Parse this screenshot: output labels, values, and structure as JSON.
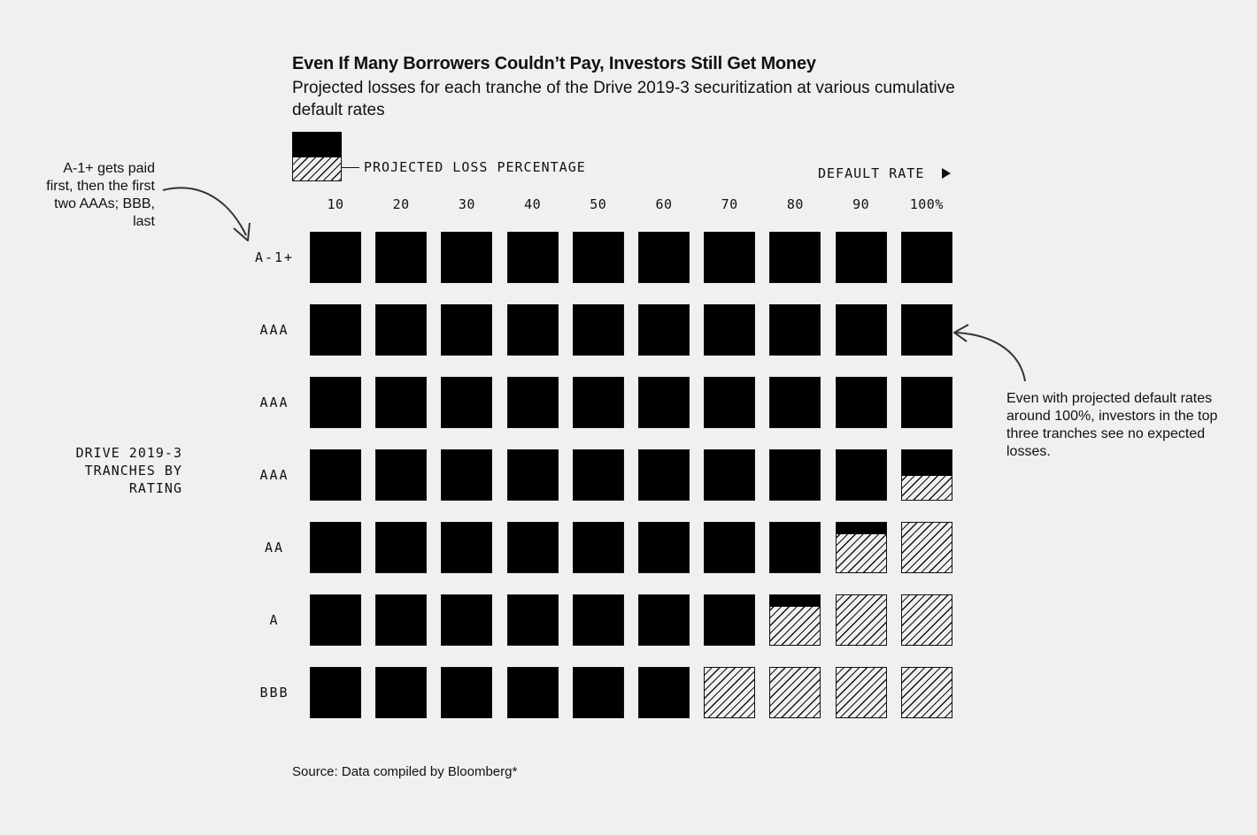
{
  "title": "Even If Many Borrowers Couldn’t Pay, Investors Still Get Money",
  "subtitle": "Projected losses for each tranche of the Drive 2019-3 securitization at various cumulative default rates",
  "legend": {
    "label": "PROJECTED LOSS PERCENTAGE"
  },
  "axis_title": "DEFAULT RATE",
  "y_axis_title": "DRIVE 2019-3 TRANCHES BY RATING",
  "annotations": {
    "left": "A-1+ gets paid first, then the first two AAAs; BBB, last",
    "right": "Even with projected default rates around 100%, investors in the top three tranches see no expected losses."
  },
  "source": "Source: Data compiled by Bloomberg*",
  "colors": {
    "background": "#f0f0f0",
    "no_loss": "#000000",
    "loss_hatch": "#111111"
  },
  "chart_data": {
    "type": "heatmap",
    "x_label": "DEFAULT RATE",
    "y_label": "DRIVE 2019-3 TRANCHES BY RATING",
    "columns": [
      "10",
      "20",
      "30",
      "40",
      "50",
      "60",
      "70",
      "80",
      "90",
      "100%"
    ],
    "rows": [
      "A-1+",
      "AAA",
      "AAA",
      "AAA",
      "AA",
      "A",
      "BBB"
    ],
    "value_description": "projected loss percentage (share of square hatched)",
    "loss_pct": [
      [
        0,
        0,
        0,
        0,
        0,
        0,
        0,
        0,
        0,
        0
      ],
      [
        0,
        0,
        0,
        0,
        0,
        0,
        0,
        0,
        0,
        0
      ],
      [
        0,
        0,
        0,
        0,
        0,
        0,
        0,
        0,
        0,
        0
      ],
      [
        0,
        0,
        0,
        0,
        0,
        0,
        0,
        0,
        0,
        50
      ],
      [
        0,
        0,
        0,
        0,
        0,
        0,
        0,
        0,
        78,
        100
      ],
      [
        0,
        0,
        0,
        0,
        0,
        0,
        3,
        78,
        100,
        100
      ],
      [
        0,
        0,
        0,
        0,
        0,
        0,
        100,
        100,
        100,
        100
      ]
    ]
  }
}
